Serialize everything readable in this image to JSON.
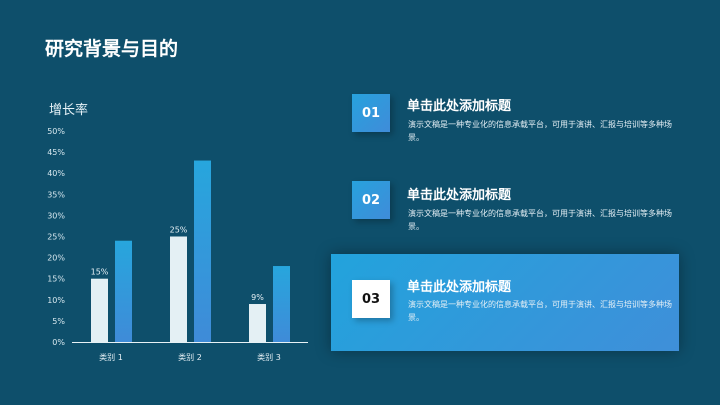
{
  "slide": {
    "title": "研究背景与目的"
  },
  "chart_data": {
    "type": "bar",
    "title": "增长率",
    "categories": [
      "类别 1",
      "类别 2",
      "类别 3"
    ],
    "series": [
      {
        "values": [
          15,
          25,
          9
        ],
        "labels": [
          "15%",
          "25%",
          "9%"
        ],
        "color": "#e4f0f4"
      },
      {
        "values": [
          24,
          43,
          18
        ],
        "color": "#2b9fdc"
      }
    ],
    "ylim": [
      0,
      50
    ],
    "yticks": [
      "0%",
      "5%",
      "10%",
      "15%",
      "20%",
      "25%",
      "30%",
      "35%",
      "40%",
      "45%",
      "50%"
    ],
    "grid": false
  },
  "cards": [
    {
      "num": "01",
      "title": "单击此处添加标题",
      "desc": "演示文稿是一种专业化的信息承载平台，可用于演讲、汇报与培训等多种场景。",
      "active": false
    },
    {
      "num": "02",
      "title": "单击此处添加标题",
      "desc": "演示文稿是一种专业化的信息承载平台，可用于演讲、汇报与培训等多种场景。",
      "active": false
    },
    {
      "num": "03",
      "title": "单击此处添加标题",
      "desc": "演示文稿是一种专业化的信息承载平台，可用于演讲、汇报与培训等多种场景。",
      "active": true
    }
  ]
}
